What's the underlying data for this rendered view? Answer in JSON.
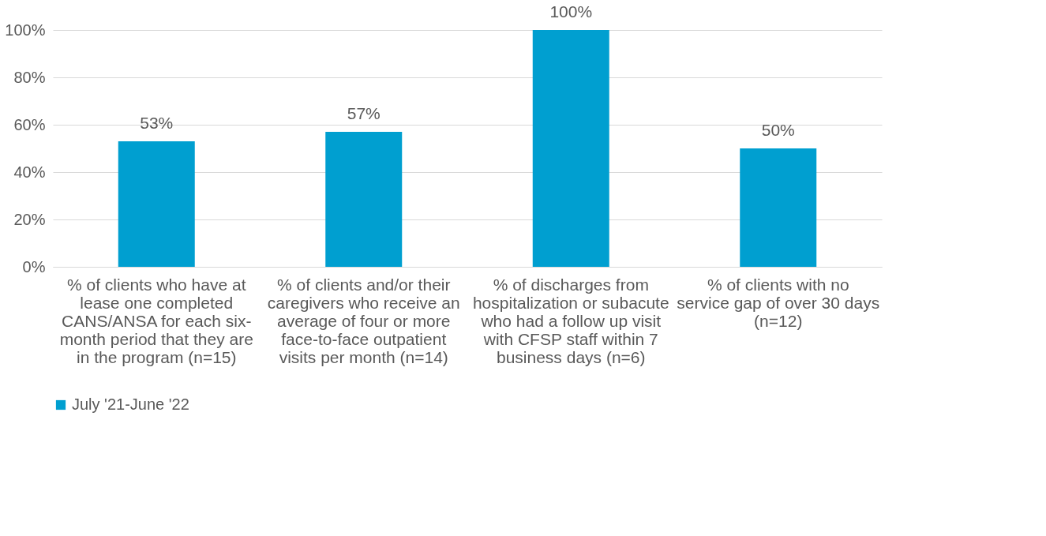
{
  "chart_data": {
    "type": "bar",
    "categories": [
      "% of clients who have at lease one completed CANS/ANSA  for each six-month period that they are in the program (n=15)",
      "% of clients and/or their caregivers who receive an average of four or more face-to-face outpatient visits per month (n=14)",
      "% of discharges from hospitalization or subacute who had a follow up visit with CFSP staff within 7 business days (n=6)",
      "% of clients with no service gap of over 30 days (n=12)"
    ],
    "series": [
      {
        "name": "July '21-June '22",
        "color": "#009fd0",
        "values": [
          53,
          57,
          100,
          50
        ],
        "value_labels": [
          "53%",
          "57%",
          "100%",
          "50%"
        ]
      }
    ],
    "ylim": [
      0,
      100
    ],
    "yticks": [
      {
        "value": 0,
        "label": "0%"
      },
      {
        "value": 20,
        "label": "20%"
      },
      {
        "value": 40,
        "label": "40%"
      },
      {
        "value": 60,
        "label": "60%"
      },
      {
        "value": 80,
        "label": "80%"
      },
      {
        "value": 100,
        "label": "100%"
      }
    ],
    "grid": "y",
    "legend": "bottom"
  }
}
